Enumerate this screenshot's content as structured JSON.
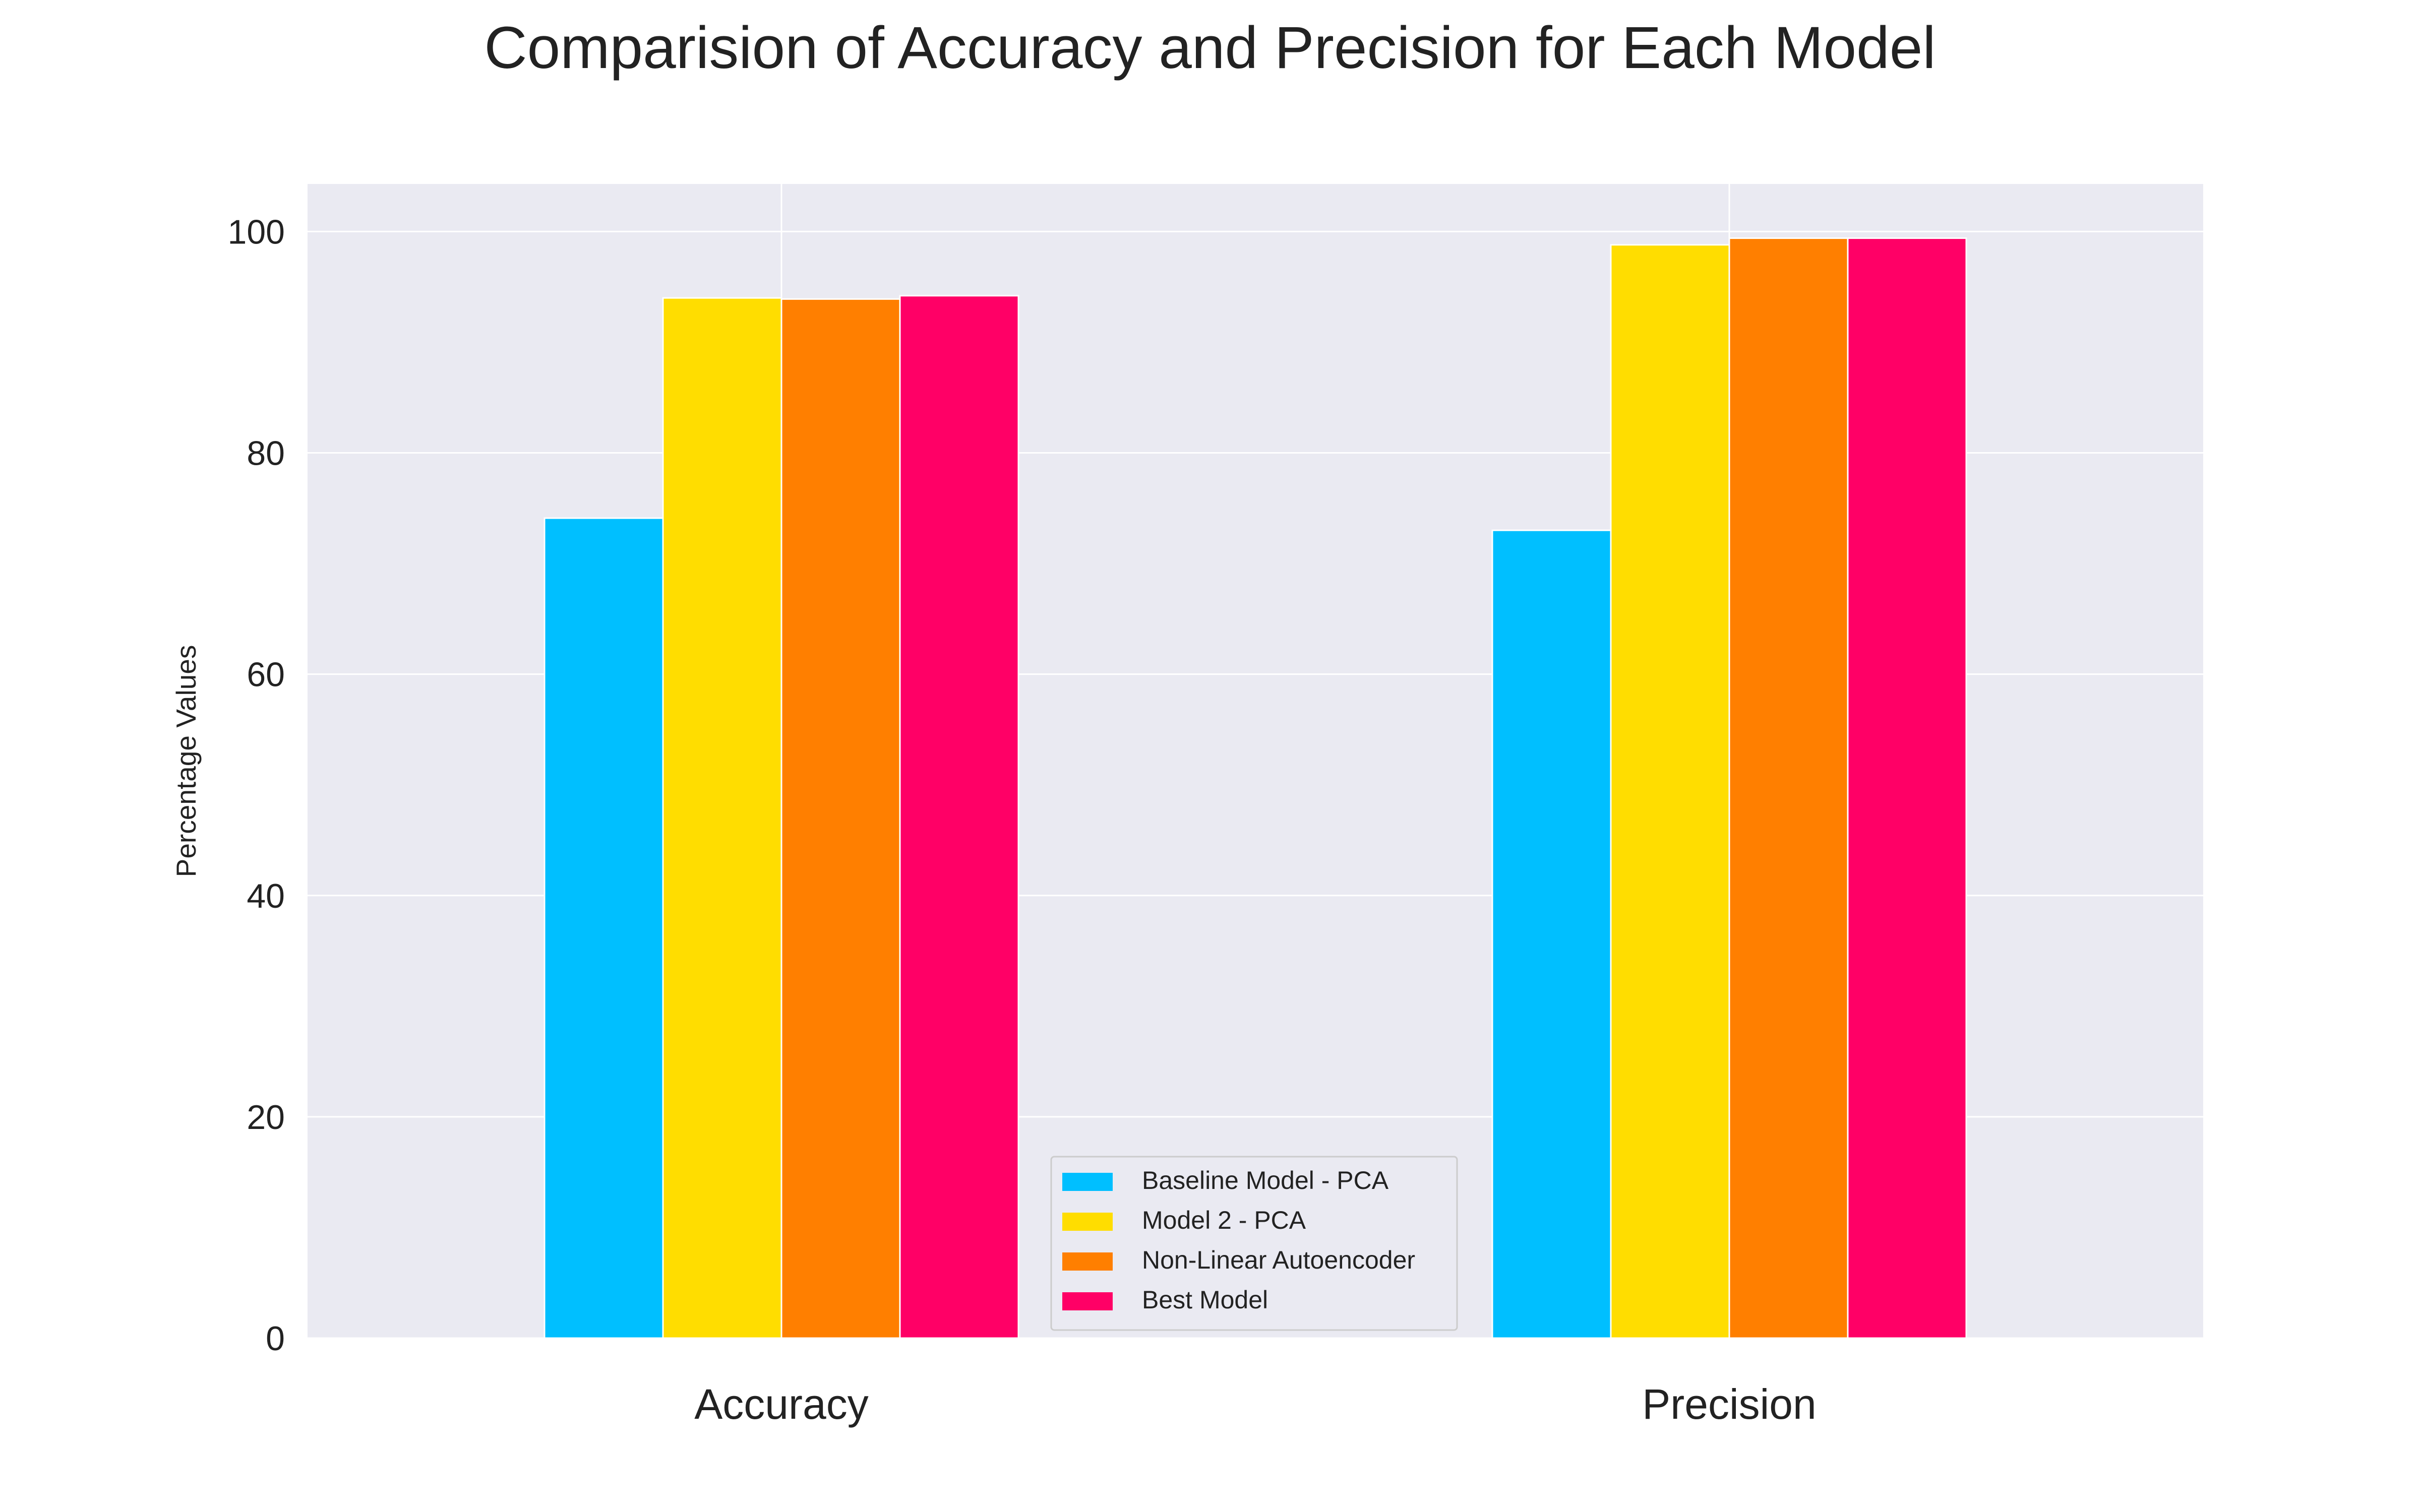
{
  "chart_data": {
    "type": "bar",
    "title": "Comparision of Accuracy and Precision for Each Model",
    "xlabel": "",
    "ylabel": "Percentage Values",
    "categories": [
      "Accuracy",
      "Precision"
    ],
    "series": [
      {
        "name": "Baseline Model - PCA",
        "values": [
          74.1,
          73.0
        ],
        "color": "#00BFFF"
      },
      {
        "name": "Model 2 - PCA",
        "values": [
          94.0,
          98.8
        ],
        "color": "#FFDD00"
      },
      {
        "name": "Non-Linear Autoencoder",
        "values": [
          93.9,
          99.4
        ],
        "color": "#FF7F00"
      },
      {
        "name": "Best Model",
        "values": [
          94.2,
          99.4
        ],
        "color": "#FF0066"
      }
    ],
    "ylim": [
      0,
      104.3
    ],
    "yticks": [
      0,
      20,
      40,
      60,
      80,
      100
    ],
    "grid": true,
    "legend_position": "lower-center",
    "background_color": "#EAEAF2",
    "grid_color": "#FFFFFF"
  }
}
